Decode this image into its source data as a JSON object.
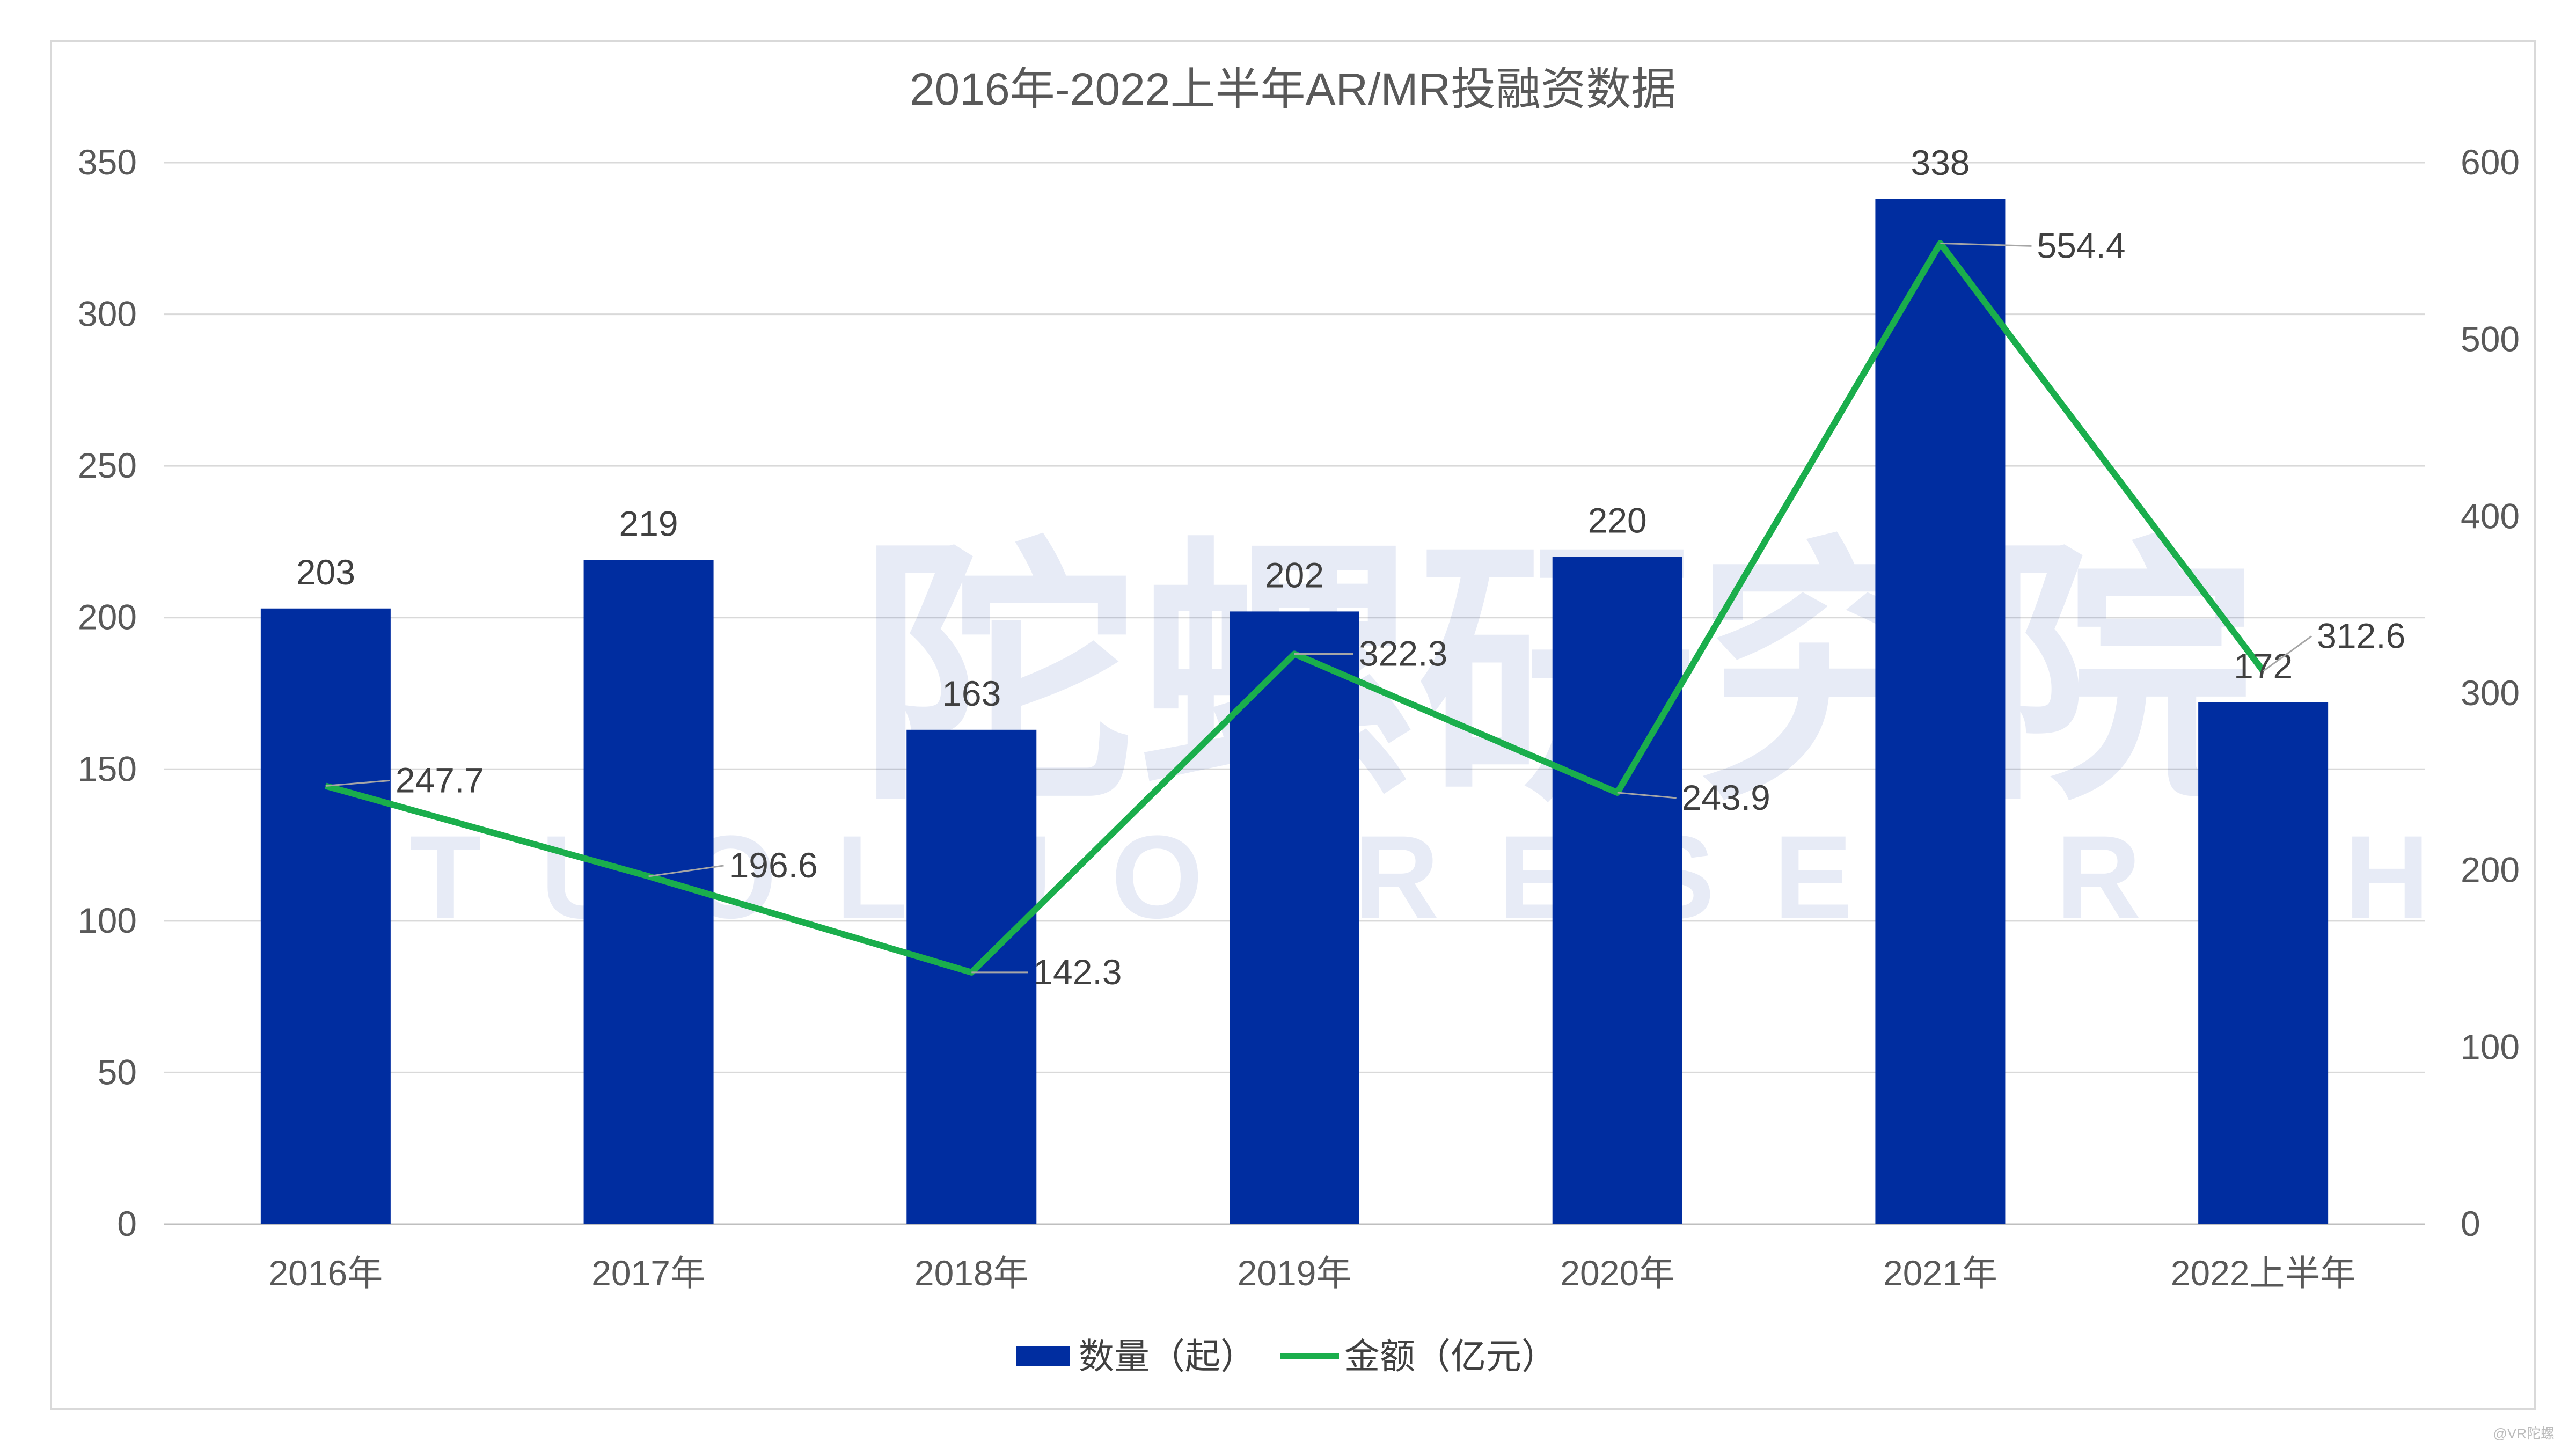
{
  "chart_data": {
    "type": "bar+line",
    "title": "2016年-2022上半年AR/MR投融资数据",
    "categories": [
      "2016年",
      "2017年",
      "2018年",
      "2019年",
      "2020年",
      "2021年",
      "2022上半年"
    ],
    "series": [
      {
        "name": "数量（起）",
        "type": "bar",
        "axis": "left",
        "color": "#002DA0",
        "values": [
          203,
          219,
          163,
          202,
          220,
          338,
          172
        ]
      },
      {
        "name": "金额（亿元）",
        "type": "line",
        "axis": "right",
        "color": "#1AAE4C",
        "values": [
          247.7,
          196.6,
          142.3,
          322.3,
          243.9,
          554.4,
          312.6
        ]
      }
    ],
    "left_axis": {
      "ylim": [
        0,
        350
      ],
      "ticks": [
        "0",
        "50",
        "100",
        "150",
        "200",
        "250",
        "300",
        "350"
      ]
    },
    "right_axis": {
      "ylim": [
        0,
        600
      ],
      "ticks": [
        "0",
        "100",
        "200",
        "300",
        "400",
        "500",
        "600"
      ]
    },
    "grid": true,
    "legend_position": "bottom"
  },
  "watermark": {
    "cn": "陀螺研究院",
    "en": "TUOLUO RESEARCH",
    "source": "@VR陀螺"
  }
}
